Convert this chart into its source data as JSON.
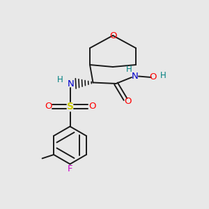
{
  "bg_color": "#e8e8e8",
  "bond_color": "#1a1a1a",
  "colors": {
    "O": "#ff0000",
    "N": "#0000cc",
    "S": "#cccc00",
    "F": "#cc00cc",
    "H": "#008080",
    "C": "#1a1a1a"
  },
  "figsize": [
    3.0,
    3.0
  ],
  "dpi": 100
}
